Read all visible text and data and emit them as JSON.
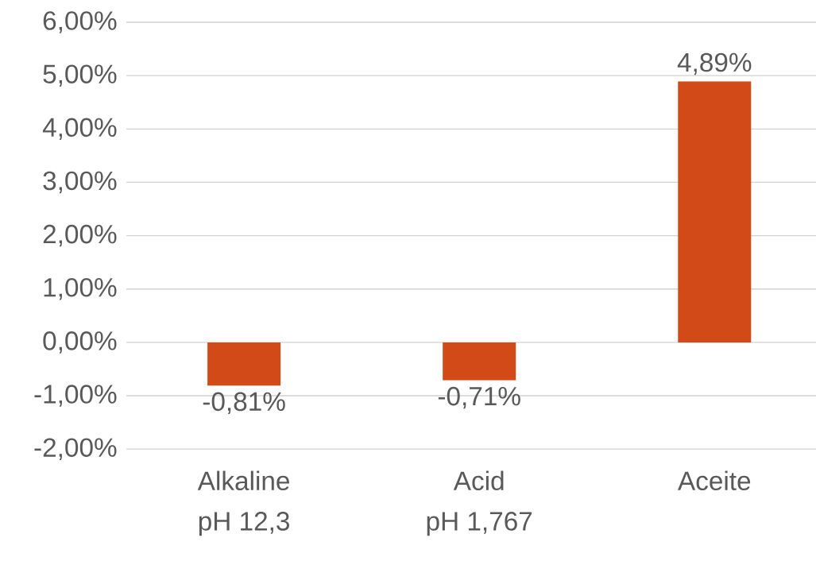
{
  "chart_data": {
    "type": "bar",
    "categories": [
      "Alkaline\npH 12,3",
      "Acid\npH 1,767",
      "Aceite"
    ],
    "values": [
      -0.81,
      -0.71,
      4.89
    ],
    "value_labels": [
      "-0,81%",
      "-0,71%",
      "4,89%"
    ],
    "color": "#d24a17",
    "ylim": [
      -2,
      6
    ],
    "yticks": [
      {
        "value": -2,
        "label": "-2,00%"
      },
      {
        "value": -1,
        "label": "-1,00%"
      },
      {
        "value": 0,
        "label": "0,00%"
      },
      {
        "value": 1,
        "label": "1,00%"
      },
      {
        "value": 2,
        "label": "2,00%"
      },
      {
        "value": 3,
        "label": "3,00%"
      },
      {
        "value": 4,
        "label": "4,00%"
      },
      {
        "value": 5,
        "label": "5,00%"
      },
      {
        "value": 6,
        "label": "6,00%"
      }
    ],
    "grid": "y"
  }
}
